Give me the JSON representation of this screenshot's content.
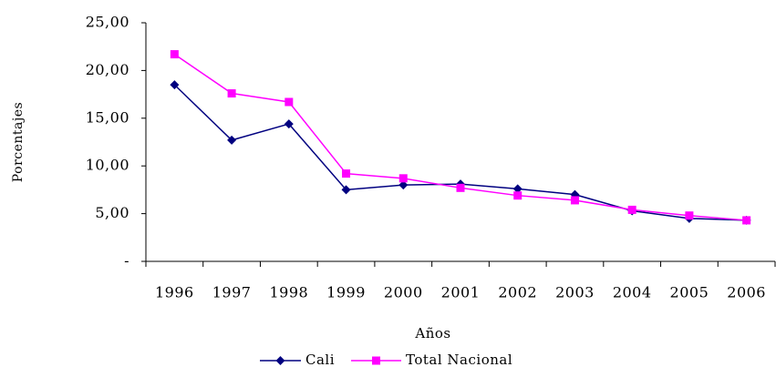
{
  "chart_data": {
    "type": "line",
    "categories": [
      "1996",
      "1997",
      "1998",
      "1999",
      "2000",
      "2001",
      "2002",
      "2003",
      "2004",
      "2005",
      "2006"
    ],
    "series": [
      {
        "name": "Cali",
        "color": "#000080",
        "marker": "diamond",
        "values": [
          18.5,
          12.7,
          14.4,
          7.5,
          8.0,
          8.1,
          7.6,
          7.0,
          5.3,
          4.5,
          4.3
        ]
      },
      {
        "name": "Total Nacional",
        "color": "#ff00ff",
        "marker": "square",
        "values": [
          21.7,
          17.6,
          16.7,
          9.2,
          8.7,
          7.7,
          6.9,
          6.4,
          5.4,
          4.8,
          4.3
        ]
      }
    ],
    "ylim": [
      0,
      25
    ],
    "yticks": [
      {
        "value": 0,
        "label": "-"
      },
      {
        "value": 5,
        "label": "5,00"
      },
      {
        "value": 10,
        "label": "10,00"
      },
      {
        "value": 15,
        "label": "15,00"
      },
      {
        "value": 20,
        "label": "20,00"
      },
      {
        "value": 25,
        "label": "25,00"
      }
    ],
    "xlabel": "Años",
    "ylabel": "Porcentajes",
    "grid": false,
    "legend": "bottom"
  }
}
